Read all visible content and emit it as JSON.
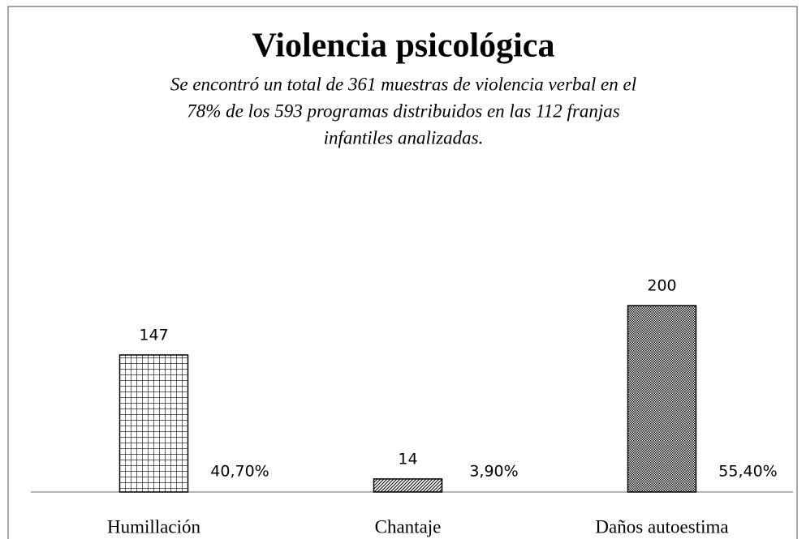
{
  "chart_data": {
    "type": "bar",
    "title": "Violencia psicológica",
    "subtitle": [
      "Se encontró un total de 361 muestras de violencia verbal en el",
      "78% de los 593 programas distribuidos en las 112 franjas",
      "infantiles analizadas."
    ],
    "categories": [
      "Humillación",
      "Chantaje",
      "Daños autoestima"
    ],
    "values": [
      147,
      14,
      200
    ],
    "shares": [
      40.7,
      3.9,
      55.4
    ],
    "share_labels": [
      "40,70%",
      "3,90%",
      "55,40%"
    ],
    "patterns": [
      "grid",
      "diagonal",
      "checker"
    ],
    "color": "#000000"
  }
}
